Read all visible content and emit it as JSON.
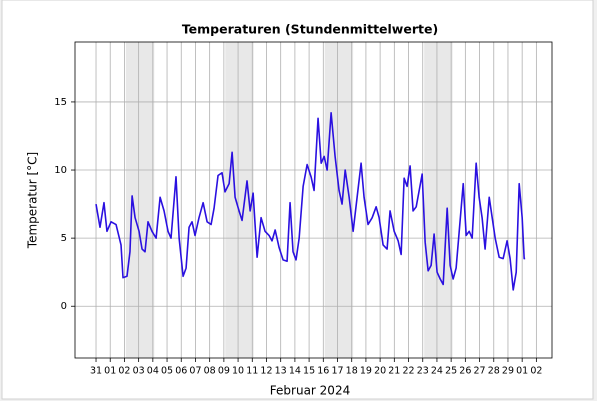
{
  "chart_data": {
    "type": "line",
    "title": "Temperaturen (Stundenmittelwerte)",
    "x_label": "Februar 2024",
    "y_label": "Temperatur [°C]",
    "xlim": [
      -1.48,
      32.1
    ],
    "ylim": [
      -3.8,
      19.4
    ],
    "yticks": [
      0,
      5,
      10,
      15
    ],
    "xticks": [
      {
        "value": 0,
        "label": "31"
      },
      {
        "value": 1,
        "label": "01"
      },
      {
        "value": 2,
        "label": "02"
      },
      {
        "value": 3,
        "label": "03"
      },
      {
        "value": 4,
        "label": "04"
      },
      {
        "value": 5,
        "label": "05"
      },
      {
        "value": 6,
        "label": "06"
      },
      {
        "value": 7,
        "label": "07"
      },
      {
        "value": 8,
        "label": "08"
      },
      {
        "value": 9,
        "label": "09"
      },
      {
        "value": 10,
        "label": "10"
      },
      {
        "value": 11,
        "label": "11"
      },
      {
        "value": 12,
        "label": "12"
      },
      {
        "value": 13,
        "label": "13"
      },
      {
        "value": 14,
        "label": "14"
      },
      {
        "value": 15,
        "label": "15"
      },
      {
        "value": 16,
        "label": "16"
      },
      {
        "value": 17,
        "label": "17"
      },
      {
        "value": 18,
        "label": "18"
      },
      {
        "value": 19,
        "label": "19"
      },
      {
        "value": 20,
        "label": "20"
      },
      {
        "value": 21,
        "label": "21"
      },
      {
        "value": 22,
        "label": "22"
      },
      {
        "value": 23,
        "label": "23"
      },
      {
        "value": 24,
        "label": "24"
      },
      {
        "value": 25,
        "label": "25"
      },
      {
        "value": 26,
        "label": "26"
      },
      {
        "value": 27,
        "label": "27"
      },
      {
        "value": 28,
        "label": "28"
      },
      {
        "value": 29,
        "label": "29"
      },
      {
        "value": 30,
        "label": "01"
      },
      {
        "value": 31,
        "label": "02"
      }
    ],
    "grid": true,
    "shaded_ranges": [
      [
        2.1,
        4.1
      ],
      [
        9.1,
        11.1
      ],
      [
        16.1,
        18.1
      ],
      [
        23.1,
        25.1
      ]
    ],
    "shade_color": "#e8e8e8",
    "series": [
      {
        "name": "Temperatur",
        "color": "#2a10e0",
        "x": [
          0,
          0.28,
          0.56,
          0.77,
          1.06,
          1.41,
          1.76,
          1.9,
          2.18,
          2.39,
          2.54,
          2.75,
          3.03,
          3.24,
          3.45,
          3.66,
          3.94,
          4.23,
          4.51,
          4.79,
          5.07,
          5.28,
          5.63,
          5.85,
          6.13,
          6.34,
          6.55,
          6.76,
          6.97,
          7.25,
          7.54,
          7.82,
          8.1,
          8.31,
          8.59,
          8.87,
          9.08,
          9.37,
          9.58,
          9.79,
          10.07,
          10.28,
          10.63,
          10.85,
          11.06,
          11.34,
          11.62,
          11.9,
          12.18,
          12.39,
          12.61,
          12.89,
          13.17,
          13.45,
          13.66,
          13.87,
          14.08,
          14.3,
          14.58,
          14.86,
          15.14,
          15.35,
          15.63,
          15.85,
          16.06,
          16.27,
          16.55,
          16.83,
          17.11,
          17.32,
          17.54,
          17.82,
          18.1,
          18.38,
          18.66,
          18.87,
          19.15,
          19.44,
          19.72,
          19.93,
          20.21,
          20.49,
          20.7,
          20.99,
          21.27,
          21.48,
          21.69,
          21.9,
          22.11,
          22.32,
          22.54,
          22.75,
          22.96,
          23.17,
          23.38,
          23.59,
          23.8,
          24.01,
          24.23,
          24.44,
          24.72,
          24.93,
          25.14,
          25.35,
          25.56,
          25.85,
          26.06,
          26.27,
          26.48,
          26.76,
          26.97,
          27.18,
          27.39,
          27.68,
          27.89,
          28.1,
          28.38,
          28.66,
          28.94,
          29.15,
          29.37,
          29.58,
          29.79,
          30.0,
          30.14,
          30.21
        ],
        "values": [
          7.5,
          5.8,
          7.6,
          5.5,
          6.2,
          6.0,
          4.5,
          2.1,
          2.2,
          4.0,
          8.1,
          6.5,
          5.5,
          4.2,
          4.0,
          6.2,
          5.5,
          5.0,
          8.0,
          7.0,
          5.5,
          5.0,
          9.5,
          5.0,
          2.2,
          2.8,
          5.8,
          6.2,
          5.2,
          6.5,
          7.6,
          6.2,
          6.0,
          7.2,
          9.6,
          9.8,
          8.4,
          9.0,
          11.3,
          8.0,
          7.0,
          6.3,
          9.2,
          7.0,
          8.3,
          3.6,
          6.5,
          5.5,
          5.2,
          4.8,
          5.6,
          4.3,
          3.4,
          3.3,
          7.6,
          4.0,
          3.4,
          5.0,
          8.8,
          10.4,
          9.5,
          8.5,
          13.8,
          10.5,
          11.0,
          10.0,
          14.2,
          11.0,
          8.5,
          7.5,
          10.0,
          8.0,
          5.5,
          8.0,
          10.5,
          8.0,
          6.0,
          6.5,
          7.3,
          6.5,
          4.5,
          4.2,
          7.0,
          5.5,
          4.8,
          3.8,
          9.4,
          8.8,
          10.3,
          7.0,
          7.3,
          8.5,
          9.7,
          4.7,
          2.6,
          3.0,
          5.3,
          2.5,
          2.0,
          1.6,
          7.2,
          3.0,
          2.0,
          2.8,
          5.4,
          9.0,
          5.2,
          5.5,
          5.0,
          10.5,
          8.0,
          6.5,
          4.2,
          8.0,
          6.5,
          5.0,
          3.6,
          3.5,
          4.8,
          3.5,
          1.2,
          2.5,
          9.0,
          6.5,
          3.5,
          3.5
        ]
      }
    ]
  }
}
